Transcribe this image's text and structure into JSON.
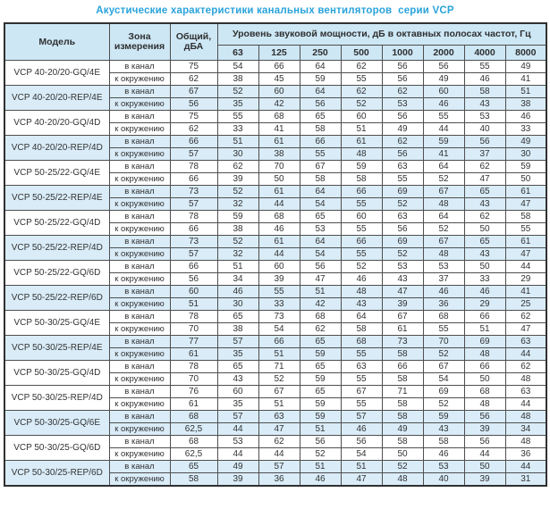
{
  "title": "Акустические характеристики канальных вентиляторов  серии VCP",
  "colors": {
    "title_blue": "#29a3db",
    "header_bg": "#cde7f5",
    "shaded_row_bg": "#d9ecf8",
    "plain_row_bg": "#ffffff",
    "border_dark": "#4f4f4f",
    "border_outer": "#303030",
    "text": "#333333"
  },
  "table": {
    "headers": {
      "model": "Модель",
      "zone": "Зона измерения",
      "total": "Общий, дБА",
      "band_group": "Уровень звуковой мощности, дБ в октавных полосах частот, Гц",
      "frequencies": [
        "63",
        "125",
        "250",
        "500",
        "1000",
        "2000",
        "4000",
        "8000"
      ]
    },
    "zone_labels": [
      "в канал",
      "к окружению"
    ],
    "groups": [
      {
        "model": "VCP 40-20/20-GQ/4E",
        "shaded": false,
        "rows": [
          {
            "zone": "в канал",
            "total": "75",
            "bands": [
              54,
              66,
              64,
              62,
              56,
              56,
              55,
              49
            ]
          },
          {
            "zone": "к окружению",
            "total": "62",
            "bands": [
              38,
              45,
              59,
              55,
              56,
              49,
              46,
              41
            ]
          }
        ]
      },
      {
        "model": "VCP 40-20/20-REP/4E",
        "shaded": true,
        "rows": [
          {
            "zone": "в канал",
            "total": "67",
            "bands": [
              52,
              60,
              64,
              62,
              62,
              60,
              58,
              51
            ]
          },
          {
            "zone": "к окружению",
            "total": "56",
            "bands": [
              35,
              42,
              56,
              52,
              53,
              46,
              43,
              38
            ]
          }
        ]
      },
      {
        "model": "VCP 40-20/20-GQ/4D",
        "shaded": false,
        "rows": [
          {
            "zone": "в канал",
            "total": "75",
            "bands": [
              55,
              68,
              65,
              60,
              56,
              55,
              53,
              46
            ]
          },
          {
            "zone": "к окружению",
            "total": "62",
            "bands": [
              33,
              41,
              58,
              51,
              49,
              44,
              40,
              33
            ]
          }
        ]
      },
      {
        "model": "VCP 40-20/20-REP/4D",
        "shaded": true,
        "rows": [
          {
            "zone": "в канал",
            "total": "66",
            "bands": [
              51,
              61,
              66,
              61,
              62,
              59,
              56,
              49
            ]
          },
          {
            "zone": "к окружению",
            "total": "57",
            "bands": [
              30,
              38,
              55,
              48,
              56,
              41,
              37,
              30
            ]
          }
        ]
      },
      {
        "model": "VCP 50-25/22-GQ/4E",
        "shaded": false,
        "rows": [
          {
            "zone": "в канал",
            "total": "78",
            "bands": [
              62,
              70,
              67,
              59,
              63,
              64,
              62,
              59
            ]
          },
          {
            "zone": "к окружению",
            "total": "66",
            "bands": [
              39,
              50,
              58,
              58,
              55,
              52,
              47,
              50
            ]
          }
        ]
      },
      {
        "model": "VCP 50-25/22-REP/4E",
        "shaded": true,
        "rows": [
          {
            "zone": "в канал",
            "total": "73",
            "bands": [
              52,
              61,
              64,
              66,
              69,
              67,
              65,
              61
            ]
          },
          {
            "zone": "к окружению",
            "total": "57",
            "bands": [
              32,
              44,
              54,
              55,
              52,
              48,
              43,
              47
            ]
          }
        ]
      },
      {
        "model": "VCP 50-25/22-GQ/4D",
        "shaded": false,
        "rows": [
          {
            "zone": "в канал",
            "total": "78",
            "bands": [
              59,
              68,
              65,
              60,
              63,
              64,
              62,
              58
            ]
          },
          {
            "zone": "к окружению",
            "total": "66",
            "bands": [
              38,
              46,
              53,
              55,
              56,
              52,
              50,
              55
            ]
          }
        ]
      },
      {
        "model": "VCP 50-25/22-REP/4D",
        "shaded": true,
        "rows": [
          {
            "zone": "в канал",
            "total": "73",
            "bands": [
              52,
              61,
              64,
              66,
              69,
              67,
              65,
              61
            ]
          },
          {
            "zone": "к окружению",
            "total": "57",
            "bands": [
              32,
              44,
              54,
              55,
              52,
              48,
              43,
              47
            ]
          }
        ]
      },
      {
        "model": "VCP 50-25/22-GQ/6D",
        "shaded": false,
        "rows": [
          {
            "zone": "в канал",
            "total": "66",
            "bands": [
              51,
              60,
              56,
              52,
              53,
              53,
              50,
              44
            ]
          },
          {
            "zone": "к окружению",
            "total": "56",
            "bands": [
              34,
              39,
              47,
              46,
              43,
              37,
              33,
              29
            ]
          }
        ]
      },
      {
        "model": "VCP 50-25/22-REP/6D",
        "shaded": true,
        "rows": [
          {
            "zone": "в канал",
            "total": "60",
            "bands": [
              46,
              55,
              51,
              48,
              47,
              46,
              46,
              41
            ]
          },
          {
            "zone": "к окружению",
            "total": "51",
            "bands": [
              30,
              33,
              42,
              43,
              39,
              36,
              29,
              25
            ]
          }
        ]
      },
      {
        "model": "VCP 50-30/25-GQ/4E",
        "shaded": false,
        "rows": [
          {
            "zone": "в канал",
            "total": "78",
            "bands": [
              65,
              73,
              68,
              64,
              67,
              68,
              66,
              62
            ]
          },
          {
            "zone": "к окружению",
            "total": "70",
            "bands": [
              38,
              54,
              62,
              58,
              61,
              55,
              51,
              47
            ]
          }
        ]
      },
      {
        "model": "VCP 50-30/25-REP/4E",
        "shaded": true,
        "rows": [
          {
            "zone": "в канал",
            "total": "77",
            "bands": [
              57,
              66,
              65,
              68,
              73,
              70,
              69,
              63
            ]
          },
          {
            "zone": "к окружению",
            "total": "61",
            "bands": [
              35,
              51,
              59,
              55,
              58,
              52,
              48,
              44
            ]
          }
        ]
      },
      {
        "model": "VCP 50-30/25-GQ/4D",
        "shaded": false,
        "rows": [
          {
            "zone": "в канал",
            "total": "78",
            "bands": [
              65,
              71,
              65,
              63,
              66,
              67,
              66,
              62
            ]
          },
          {
            "zone": "к окружению",
            "total": "70",
            "bands": [
              43,
              52,
              59,
              55,
              58,
              54,
              50,
              48
            ]
          }
        ]
      },
      {
        "model": "VCP 50-30/25-REP/4D",
        "shaded": false,
        "rows": [
          {
            "zone": "в канал",
            "total": "76",
            "bands": [
              60,
              67,
              65,
              67,
              71,
              69,
              68,
              63
            ]
          },
          {
            "zone": "к окружению",
            "total": "61",
            "bands": [
              35,
              51,
              59,
              55,
              58,
              52,
              48,
              44
            ]
          }
        ]
      },
      {
        "model": "VCP 50-30/25-GQ/6E",
        "shaded": true,
        "rows": [
          {
            "zone": "в канал",
            "total": "68",
            "bands": [
              57,
              63,
              59,
              57,
              58,
              59,
              56,
              48
            ]
          },
          {
            "zone": "к окружению",
            "total": "62,5",
            "bands": [
              44,
              47,
              51,
              46,
              49,
              43,
              39,
              34
            ]
          }
        ]
      },
      {
        "model": "VCP 50-30/25-GQ/6D",
        "shaded": false,
        "rows": [
          {
            "zone": "в канал",
            "total": "68",
            "bands": [
              53,
              62,
              56,
              56,
              58,
              58,
              56,
              48
            ]
          },
          {
            "zone": "к окружению",
            "total": "62,5",
            "bands": [
              44,
              44,
              52,
              54,
              50,
              46,
              44,
              36
            ]
          }
        ]
      },
      {
        "model": "VCP 50-30/25-REP/6D",
        "shaded": true,
        "rows": [
          {
            "zone": "в канал",
            "total": "65",
            "bands": [
              49,
              57,
              51,
              51,
              52,
              53,
              50,
              44
            ]
          },
          {
            "zone": "к окружению",
            "total": "58",
            "bands": [
              39,
              36,
              46,
              47,
              48,
              40,
              39,
              31
            ]
          }
        ]
      }
    ]
  }
}
